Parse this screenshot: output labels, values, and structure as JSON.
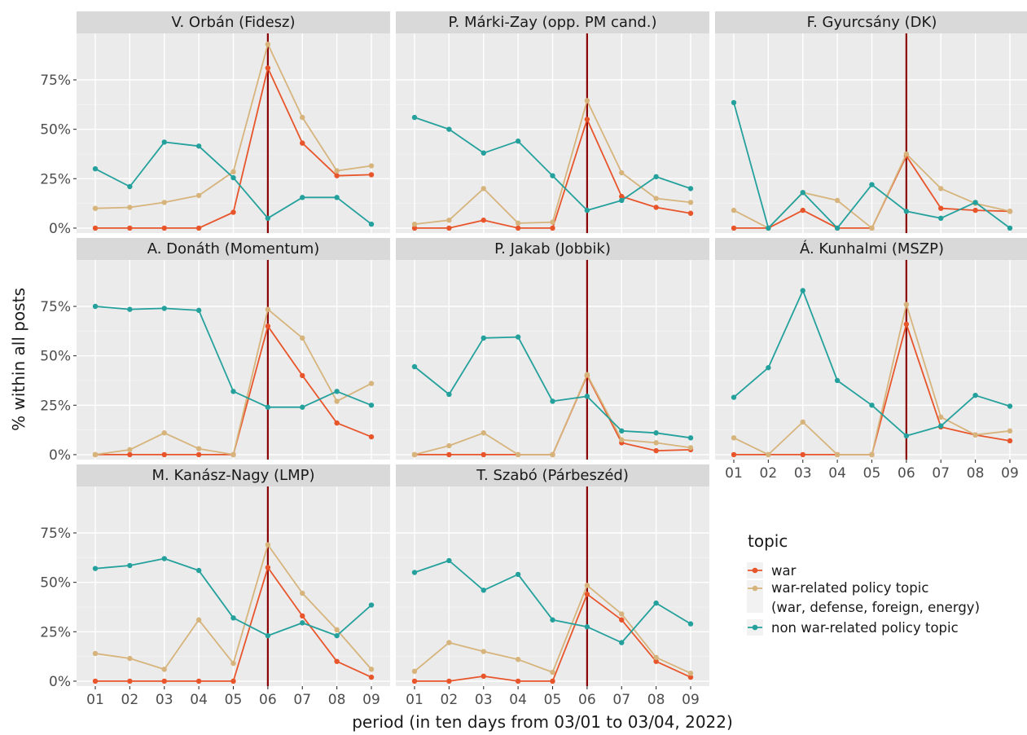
{
  "chart_data": {
    "type": "line",
    "title": "",
    "xlabel": "period (in ten days from 03/01 to 03/04, 2022)",
    "ylabel": "% within all posts",
    "x": [
      "01",
      "02",
      "03",
      "04",
      "05",
      "06",
      "07",
      "08",
      "09"
    ],
    "y_ticks": [
      0,
      25,
      50,
      75
    ],
    "y_tick_labels": [
      "0%",
      "25%",
      "50%",
      "75%"
    ],
    "ylim": [
      -2.5,
      98.5
    ],
    "grid": true,
    "vertical_line_at": "06",
    "vertical_line_color": "#8b0000",
    "legend": {
      "title": "topic",
      "placement": "right",
      "entries": [
        {
          "label": "war",
          "color": "#e8552b"
        },
        {
          "label": "war-related policy topic",
          "label2": "(war, defense, foreign, energy)",
          "color": "#d6b47c"
        },
        {
          "label": "non war-related policy topic",
          "color": "#24a19c"
        }
      ]
    },
    "panels": [
      {
        "title": "V. Orbán (Fidesz)",
        "series": [
          {
            "name": "war",
            "values": [
              0,
              0,
              0,
              0,
              8,
              81,
              43,
              26.5,
              27
            ]
          },
          {
            "name": "war-related policy topic",
            "values": [
              10,
              10.5,
              13,
              16.5,
              28.5,
              93,
              56,
              29,
              31.5
            ]
          },
          {
            "name": "non war-related policy topic",
            "values": [
              30,
              21,
              43.5,
              41.5,
              25.5,
              5,
              15.5,
              15.5,
              2
            ]
          }
        ]
      },
      {
        "title": "P. Márki-Zay (opp. PM cand.)",
        "series": [
          {
            "name": "war",
            "values": [
              0,
              0,
              4,
              0,
              0,
              55,
              16,
              10.5,
              7.5
            ]
          },
          {
            "name": "war-related policy topic",
            "values": [
              2,
              4,
              20,
              2.5,
              3,
              64.5,
              28,
              15,
              13
            ]
          },
          {
            "name": "non war-related policy topic",
            "values": [
              56,
              50,
              38,
              44,
              26.5,
              9,
              14,
              26,
              20
            ]
          }
        ]
      },
      {
        "title": "F. Gyurcsány (DK)",
        "series": [
          {
            "name": "war",
            "values": [
              0,
              0,
              9,
              0,
              0,
              36.5,
              10,
              9,
              8.5
            ]
          },
          {
            "name": "war-related policy topic",
            "values": [
              9,
              0,
              18,
              14,
              0,
              37.5,
              20,
              12.5,
              8.5
            ]
          },
          {
            "name": "non war-related policy topic",
            "values": [
              63.5,
              0,
              18,
              0,
              22,
              8.5,
              5,
              13,
              0
            ]
          }
        ]
      },
      {
        "title": "A. Donáth (Momentum)",
        "series": [
          {
            "name": "war",
            "values": [
              0,
              0,
              0,
              0,
              0,
              65,
              40,
              16,
              9
            ]
          },
          {
            "name": "war-related policy topic",
            "values": [
              0,
              2.5,
              11,
              3,
              0,
              73.5,
              59,
              27,
              36
            ]
          },
          {
            "name": "non war-related policy topic",
            "values": [
              75,
              73.5,
              74,
              73,
              32,
              24,
              24,
              32,
              25
            ]
          }
        ]
      },
      {
        "title": "P. Jakab (Jobbik)",
        "series": [
          {
            "name": "war",
            "values": [
              0,
              0,
              0,
              0,
              0,
              40,
              6,
              2,
              2.5
            ]
          },
          {
            "name": "war-related policy topic",
            "values": [
              0,
              4.5,
              11,
              0,
              0,
              40.5,
              7.5,
              6,
              3.5
            ]
          },
          {
            "name": "non war-related policy topic",
            "values": [
              44.5,
              30.5,
              59,
              59.5,
              27,
              29.5,
              12,
              11,
              8.5
            ]
          }
        ]
      },
      {
        "title": "Á. Kunhalmi (MSZP)",
        "series": [
          {
            "name": "war",
            "values": [
              0,
              0,
              0,
              0,
              0,
              66,
              14,
              10,
              7
            ]
          },
          {
            "name": "war-related policy topic",
            "values": [
              8.5,
              0,
              16.5,
              0,
              0,
              76,
              19,
              10,
              12
            ]
          },
          {
            "name": "non war-related policy topic",
            "values": [
              29,
              44,
              83,
              37.5,
              25,
              9.5,
              14.5,
              30,
              24.5
            ]
          }
        ]
      },
      {
        "title": "M. Kanász-Nagy (LMP)",
        "series": [
          {
            "name": "war",
            "values": [
              0,
              0,
              0,
              0,
              0,
              57.5,
              33,
              10,
              2
            ]
          },
          {
            "name": "war-related policy topic",
            "values": [
              14,
              11.5,
              6,
              31,
              9,
              69,
              44.5,
              26,
              6
            ]
          },
          {
            "name": "non war-related policy topic",
            "values": [
              57,
              58.5,
              62,
              56,
              32,
              23,
              29.5,
              23,
              38.5
            ]
          }
        ]
      },
      {
        "title": "T. Szabó (Párbeszéd)",
        "series": [
          {
            "name": "war",
            "values": [
              0,
              0,
              2.5,
              0,
              0,
              44,
              31,
              10,
              2
            ]
          },
          {
            "name": "war-related policy topic",
            "values": [
              5,
              19.5,
              15,
              11,
              4.5,
              48.5,
              34,
              12,
              4
            ]
          },
          {
            "name": "non war-related policy topic",
            "values": [
              55,
              61,
              46,
              54,
              31,
              27.5,
              19.5,
              39.5,
              29
            ]
          }
        ]
      }
    ]
  }
}
